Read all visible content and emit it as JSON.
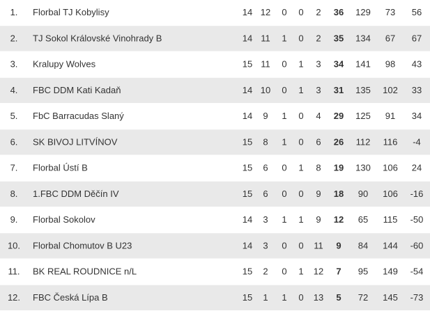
{
  "table": {
    "rows": [
      [
        "1.",
        "Florbal TJ Kobylisy",
        14,
        12,
        0,
        0,
        2,
        36,
        129,
        73,
        56
      ],
      [
        "2.",
        "TJ Sokol Královské Vinohrady B",
        14,
        11,
        1,
        0,
        2,
        35,
        134,
        67,
        67
      ],
      [
        "3.",
        "Kralupy Wolves",
        15,
        11,
        0,
        1,
        3,
        34,
        141,
        98,
        43
      ],
      [
        "4.",
        "FBC DDM Kati Kadaň",
        14,
        10,
        0,
        1,
        3,
        31,
        135,
        102,
        33
      ],
      [
        "5.",
        "FbC Barracudas Slaný",
        14,
        9,
        1,
        0,
        4,
        29,
        125,
        91,
        34
      ],
      [
        "6.",
        "SK BIVOJ LITVÍNOV",
        15,
        8,
        1,
        0,
        6,
        26,
        112,
        116,
        -4
      ],
      [
        "7.",
        "Florbal Ústí B",
        15,
        6,
        0,
        1,
        8,
        19,
        130,
        106,
        24
      ],
      [
        "8.",
        "1.FBC DDM Děčín IV",
        15,
        6,
        0,
        0,
        9,
        18,
        90,
        106,
        -16
      ],
      [
        "9.",
        "Florbal Sokolov",
        14,
        3,
        1,
        1,
        9,
        12,
        65,
        115,
        -50
      ],
      [
        "10.",
        "Florbal Chomutov B U23",
        14,
        3,
        0,
        0,
        11,
        9,
        84,
        144,
        -60
      ],
      [
        "11.",
        "BK REAL ROUDNICE n/L",
        15,
        2,
        0,
        1,
        12,
        7,
        95,
        149,
        -54
      ],
      [
        "12.",
        "FBC Česká Lípa B",
        15,
        1,
        1,
        0,
        13,
        5,
        72,
        145,
        -73
      ]
    ]
  }
}
